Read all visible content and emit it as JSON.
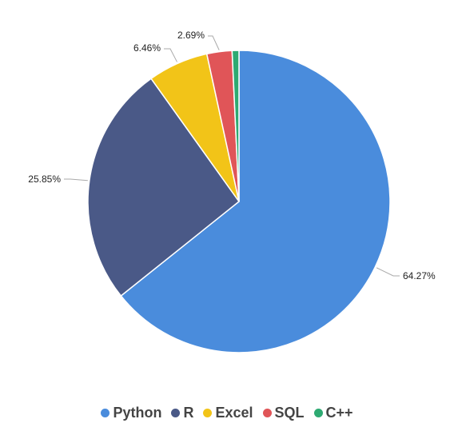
{
  "chart_data": {
    "type": "pie",
    "slices": [
      {
        "name": "Python",
        "value": 64.27,
        "label": "64.27%",
        "color": "#4a8cdc"
      },
      {
        "name": "R",
        "value": 25.85,
        "label": "25.85%",
        "color": "#4a5987"
      },
      {
        "name": "Excel",
        "value": 6.46,
        "label": "6.46%",
        "color": "#f2c418"
      },
      {
        "name": "SQL",
        "value": 2.69,
        "label": "2.69%",
        "color": "#e05558"
      },
      {
        "name": "C++",
        "value": 0.73,
        "label": "",
        "color": "#2eaa72"
      }
    ],
    "legend_position": "bottom-center"
  }
}
